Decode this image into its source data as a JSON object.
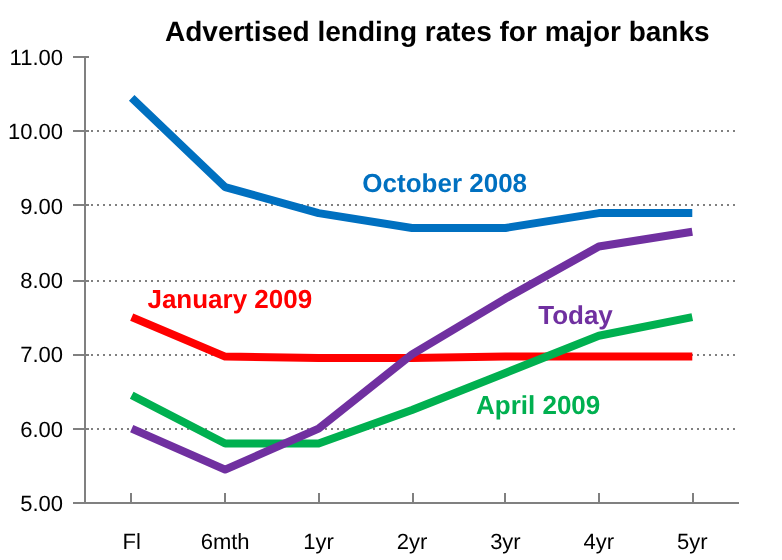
{
  "chart_data": {
    "type": "line",
    "title": "Advertised  lending rates for major banks",
    "categories": [
      "Fl",
      "6mth",
      "1yr",
      "2yr",
      "3yr",
      "4yr",
      "5yr"
    ],
    "series": [
      {
        "name": "October 2008",
        "color": "#0070c0",
        "values": [
          10.45,
          9.25,
          8.9,
          8.7,
          8.7,
          8.9,
          8.9
        ]
      },
      {
        "name": "January 2009",
        "color": "#ff0000",
        "values": [
          7.5,
          6.97,
          6.95,
          6.95,
          6.97,
          6.97,
          6.97
        ]
      },
      {
        "name": "April 2009",
        "color": "#00b050",
        "values": [
          6.45,
          5.8,
          5.8,
          6.25,
          6.75,
          7.25,
          7.5
        ]
      },
      {
        "name": "Today",
        "color": "#7030a0",
        "values": [
          6.0,
          5.45,
          6.0,
          7.0,
          7.75,
          8.45,
          8.65
        ]
      }
    ],
    "ylim": [
      5,
      11
    ],
    "yticks": [
      {
        "value": 5,
        "label": "5.00"
      },
      {
        "value": 6,
        "label": "6.00"
      },
      {
        "value": 7,
        "label": "7.00"
      },
      {
        "value": 8,
        "label": "8.00"
      },
      {
        "value": 9,
        "label": "9.00"
      },
      {
        "value": 10,
        "label": "10.00"
      },
      {
        "value": 11,
        "label": "11.00"
      }
    ],
    "grid": "y",
    "marker": "none",
    "line_style": "solid"
  }
}
